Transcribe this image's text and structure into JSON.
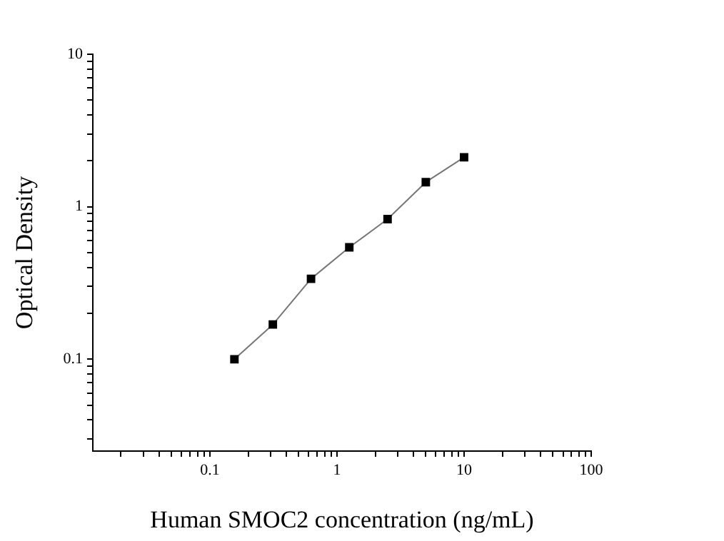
{
  "chart_data": {
    "type": "line",
    "xlabel": "Human SMOC2 concentration (ng/mL)",
    "ylabel": "Optical Density",
    "x": [
      0.156,
      0.313,
      0.625,
      1.25,
      2.5,
      5,
      10
    ],
    "series": [
      {
        "color": "#000000",
        "values": [
          0.1,
          0.169,
          0.337,
          0.542,
          0.83,
          1.45,
          2.11
        ]
      }
    ],
    "log": "xy",
    "marker": "square",
    "line_style": "solid",
    "grid": false,
    "legend": false,
    "xlim": [
      0.012,
      100
    ],
    "ylim": [
      0.025,
      10
    ],
    "xticks": [
      {
        "value": 0.02,
        "label": null
      },
      {
        "value": 0.03,
        "label": null
      },
      {
        "value": 0.04,
        "label": null
      },
      {
        "value": 0.05,
        "label": null
      },
      {
        "value": 0.06,
        "label": null
      },
      {
        "value": 0.07,
        "label": null
      },
      {
        "value": 0.08,
        "label": null
      },
      {
        "value": 0.09,
        "label": null
      },
      {
        "value": 0.1,
        "label": "0.1"
      },
      {
        "value": 0.2,
        "label": null
      },
      {
        "value": 0.3,
        "label": null
      },
      {
        "value": 0.4,
        "label": null
      },
      {
        "value": 0.5,
        "label": null
      },
      {
        "value": 0.6,
        "label": null
      },
      {
        "value": 0.7,
        "label": null
      },
      {
        "value": 0.8,
        "label": null
      },
      {
        "value": 0.9,
        "label": null
      },
      1,
      {
        "value": 2,
        "label": null
      },
      {
        "value": 3,
        "label": null
      },
      {
        "value": 4,
        "label": null
      },
      {
        "value": 5,
        "label": null
      },
      {
        "value": 6,
        "label": null
      },
      {
        "value": 7,
        "label": null
      },
      {
        "value": 8,
        "label": null
      },
      {
        "value": 9,
        "label": null
      },
      10,
      {
        "value": 20,
        "label": null
      },
      {
        "value": 30,
        "label": null
      },
      {
        "value": 40,
        "label": null
      },
      {
        "value": 50,
        "label": null
      },
      {
        "value": 60,
        "label": null
      },
      {
        "value": 70,
        "label": null
      },
      {
        "value": 80,
        "label": null
      },
      {
        "value": 90,
        "label": null
      },
      100
    ],
    "yticks": [
      {
        "value": 0.03,
        "label": null
      },
      {
        "value": 0.04,
        "label": null
      },
      {
        "value": 0.05,
        "label": null
      },
      {
        "value": 0.06,
        "label": null
      },
      {
        "value": 0.07,
        "label": null
      },
      {
        "value": 0.08,
        "label": null
      },
      {
        "value": 0.09,
        "label": null
      },
      {
        "value": 0.1,
        "label": "0.1"
      },
      {
        "value": 0.2,
        "label": null
      },
      {
        "value": 0.3,
        "label": null
      },
      {
        "value": 0.4,
        "label": null
      },
      {
        "value": 0.5,
        "label": null
      },
      {
        "value": 0.6,
        "label": null
      },
      {
        "value": 0.7,
        "label": null
      },
      {
        "value": 0.8,
        "label": null
      },
      {
        "value": 0.9,
        "label": null
      },
      1,
      {
        "value": 2,
        "label": null
      },
      {
        "value": 3,
        "label": null
      },
      {
        "value": 4,
        "label": null
      },
      {
        "value": 5,
        "label": null
      },
      {
        "value": 6,
        "label": null
      },
      {
        "value": 7,
        "label": null
      },
      {
        "value": 8,
        "label": null
      },
      {
        "value": 9,
        "label": null
      },
      10
    ]
  }
}
